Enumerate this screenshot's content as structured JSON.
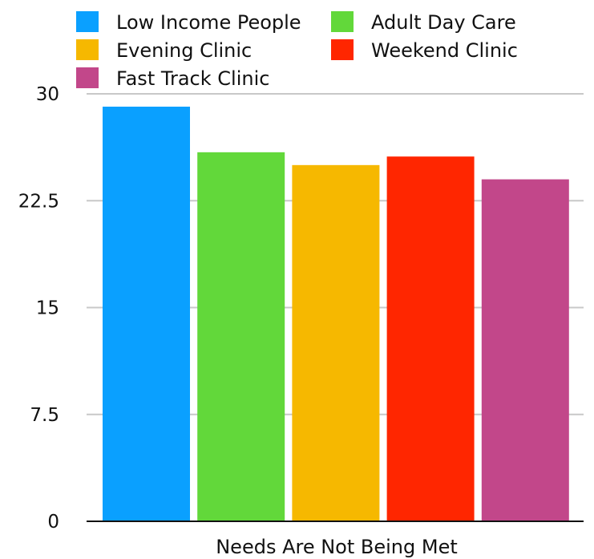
{
  "chart_data": {
    "type": "bar",
    "title": "",
    "xlabel": "",
    "ylabel": "",
    "categories": [
      "Needs Are Not Being Met"
    ],
    "series": [
      {
        "name": "Low Income People",
        "color": "#0aa0ff",
        "values": [
          29.1
        ]
      },
      {
        "name": "Adult Day Care",
        "color": "#62d83a",
        "values": [
          25.9
        ]
      },
      {
        "name": "Evening Clinic",
        "color": "#f6b800",
        "values": [
          25.0
        ]
      },
      {
        "name": "Weekend Clinic",
        "color": "#ff2600",
        "values": [
          25.6
        ]
      },
      {
        "name": "Fast Track Clinic",
        "color": "#c2478a",
        "values": [
          24.0
        ]
      }
    ],
    "ylim": [
      0,
      30
    ],
    "yticks": [
      "0",
      "7.5",
      "15",
      "22.5",
      "30"
    ],
    "grid": true,
    "legend_position": "top"
  }
}
